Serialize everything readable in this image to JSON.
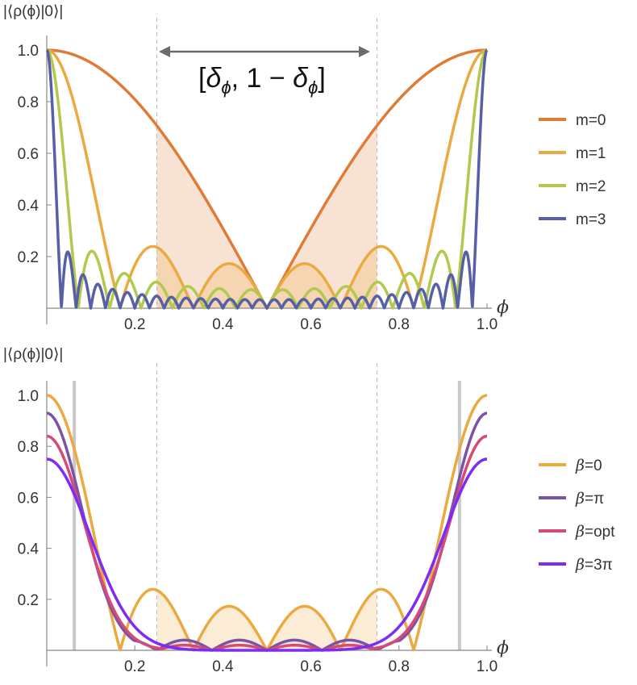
{
  "chart_data": [
    {
      "type": "line",
      "ylabel": "|⟨ρ(ϕ)|0⟩|",
      "xlabel": "ϕ",
      "xlim": [
        0,
        1
      ],
      "ylim": [
        0,
        1
      ],
      "x_ticks": [
        "0.2",
        "0.4",
        "0.6",
        "0.8",
        "1.0"
      ],
      "x_tick_values": [
        0.2,
        0.4,
        0.6,
        0.8,
        1.0
      ],
      "y_ticks": [
        "0.2",
        "0.4",
        "0.6",
        "0.8",
        "1.0"
      ],
      "y_tick_values": [
        0.2,
        0.4,
        0.6,
        0.8,
        1.0
      ],
      "dashed_lines_x": [
        0.25,
        0.75
      ],
      "shaded_interval": [
        0.25,
        0.75
      ],
      "annotation": {
        "bracket_open": "[",
        "delta": "δ",
        "subscript": "ϕ",
        "middle": ", 1 − ",
        "bracket_close": "]"
      },
      "series": [
        {
          "name": "m=0",
          "color": "#E07B36",
          "formula": "fejer",
          "L": 2,
          "shaded": true
        },
        {
          "name": "m=1",
          "color": "#EBAA40",
          "formula": "fejer",
          "L": 6,
          "shaded": true
        },
        {
          "name": "m=2",
          "color": "#B3C94E",
          "formula": "fejer",
          "L": 14,
          "shaded": false
        },
        {
          "name": "m=3",
          "color": "#5560A6",
          "formula": "fejer",
          "L": 30,
          "shaded": false
        }
      ]
    },
    {
      "type": "line",
      "ylabel": "|⟨ρ(ϕ)|0⟩|",
      "xlabel": "ϕ",
      "xlim": [
        0,
        1
      ],
      "ylim": [
        0,
        1
      ],
      "x_ticks": [
        "0.2",
        "0.4",
        "0.6",
        "0.8",
        "1.0"
      ],
      "x_tick_values": [
        0.2,
        0.4,
        0.6,
        0.8,
        1.0
      ],
      "y_ticks": [
        "0.2",
        "0.4",
        "0.6",
        "0.8",
        "1.0"
      ],
      "y_tick_values": [
        0.2,
        0.4,
        0.6,
        0.8,
        1.0
      ],
      "dashed_lines_x": [
        0.25,
        0.75
      ],
      "solid_lines_x": [
        0.0625,
        0.9375
      ],
      "shaded_interval": [
        0.25,
        0.75
      ],
      "series": [
        {
          "name": "β=0",
          "label_symbol": "β",
          "label_value": "=0",
          "color": "#EBAA40",
          "formula": "fejer",
          "L": 6,
          "shaded": true
        },
        {
          "name": "β=π",
          "label_symbol": "β",
          "label_value": "=π",
          "color": "#7A52A6",
          "formula": "smooth",
          "peak": 0.93,
          "ripple": 0.04,
          "width": 0.165
        },
        {
          "name": "β=opt",
          "label_symbol": "β",
          "label_value": "=opt",
          "color": "#D64A78",
          "formula": "smooth",
          "peak": 0.84,
          "ripple": 0.02,
          "width": 0.175
        },
        {
          "name": "β=3π",
          "label_symbol": "β",
          "label_value": "=3π",
          "color": "#7B2CF5",
          "formula": "smooth",
          "peak": 0.75,
          "ripple": 0.0,
          "width": 0.205
        }
      ]
    }
  ]
}
